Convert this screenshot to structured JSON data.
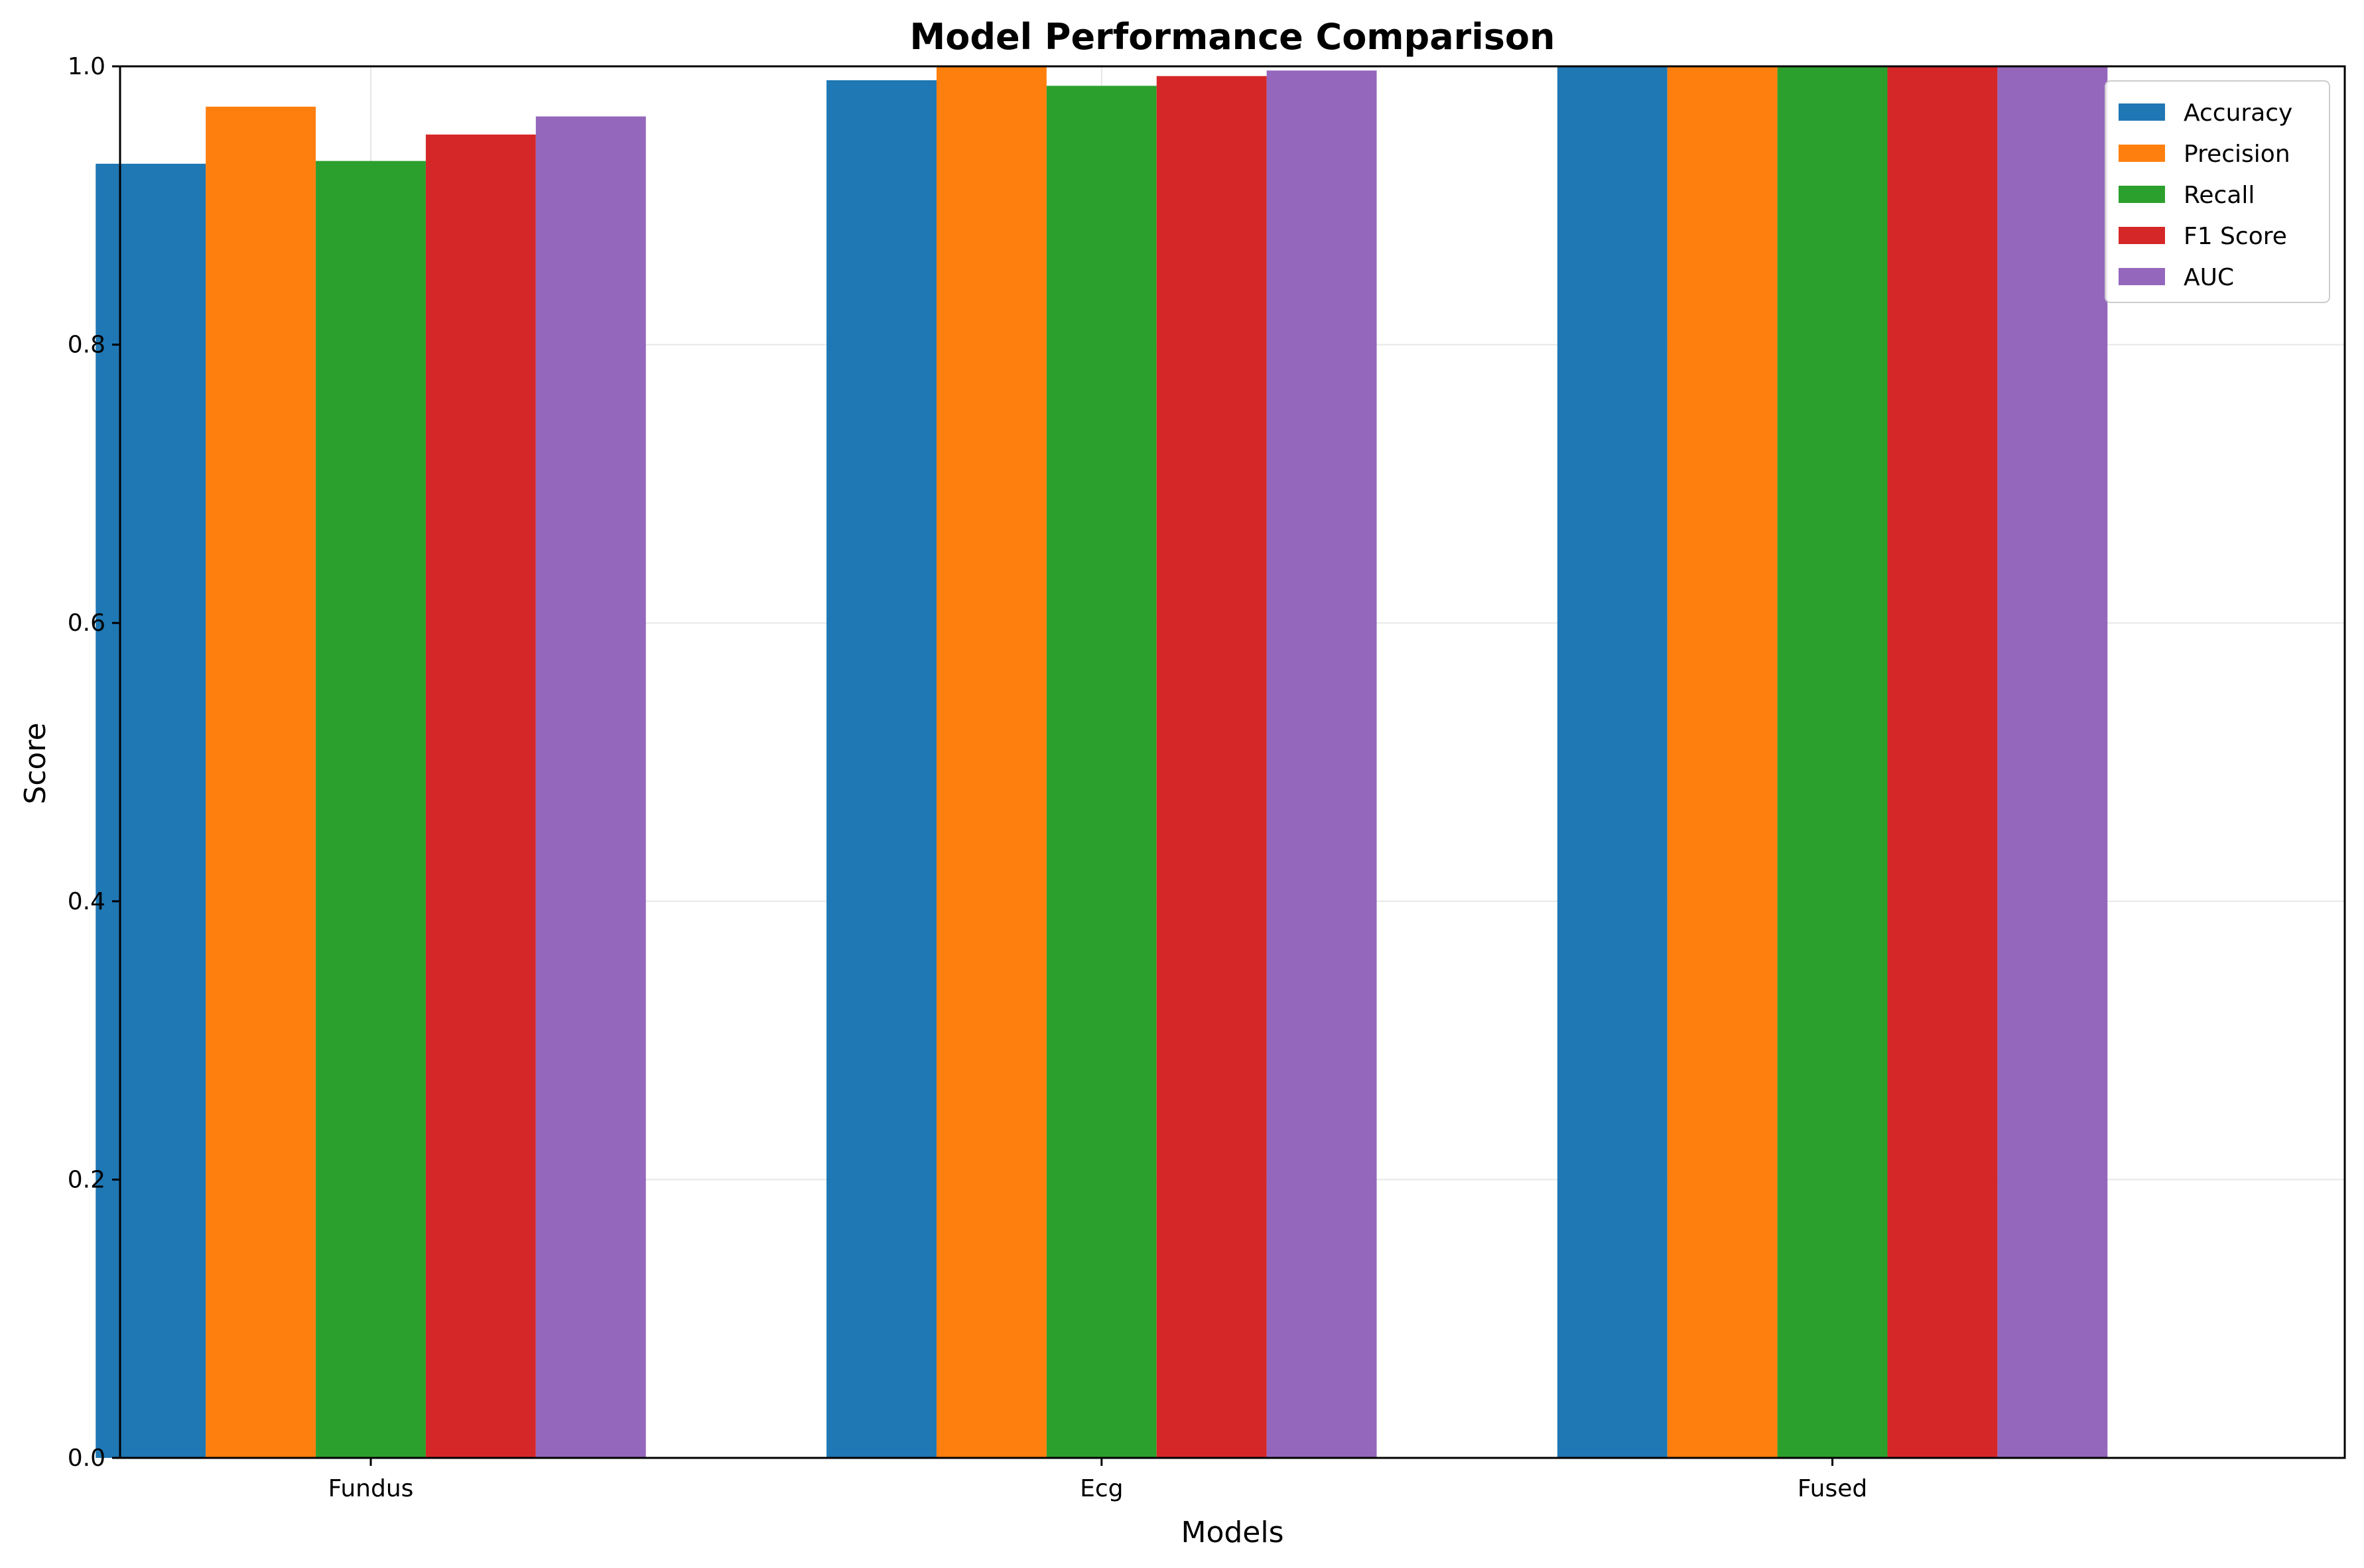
{
  "chart_data": {
    "type": "bar",
    "title": "Model Performance Comparison",
    "xlabel": "Models",
    "ylabel": "Score",
    "ylim": [
      0,
      1.0
    ],
    "yticks": [
      "0.0",
      "0.2",
      "0.4",
      "0.6",
      "0.8",
      "1.0"
    ],
    "categories": [
      "Fundus",
      "Ecg",
      "Fused"
    ],
    "series": [
      {
        "name": "Accuracy",
        "color": "#1f77b4",
        "values": [
          0.93,
          0.99,
          1.0
        ]
      },
      {
        "name": "Precision",
        "color": "#ff7f0e",
        "values": [
          0.971,
          1.0,
          1.0
        ]
      },
      {
        "name": "Recall",
        "color": "#2ca02c",
        "values": [
          0.932,
          0.986,
          1.0
        ]
      },
      {
        "name": "F1 Score",
        "color": "#d62728",
        "values": [
          0.951,
          0.993,
          1.0
        ]
      },
      {
        "name": "AUC",
        "color": "#9467bd",
        "values": [
          0.964,
          0.997,
          1.0
        ]
      }
    ],
    "grid": true,
    "legend_position": "top-right"
  }
}
